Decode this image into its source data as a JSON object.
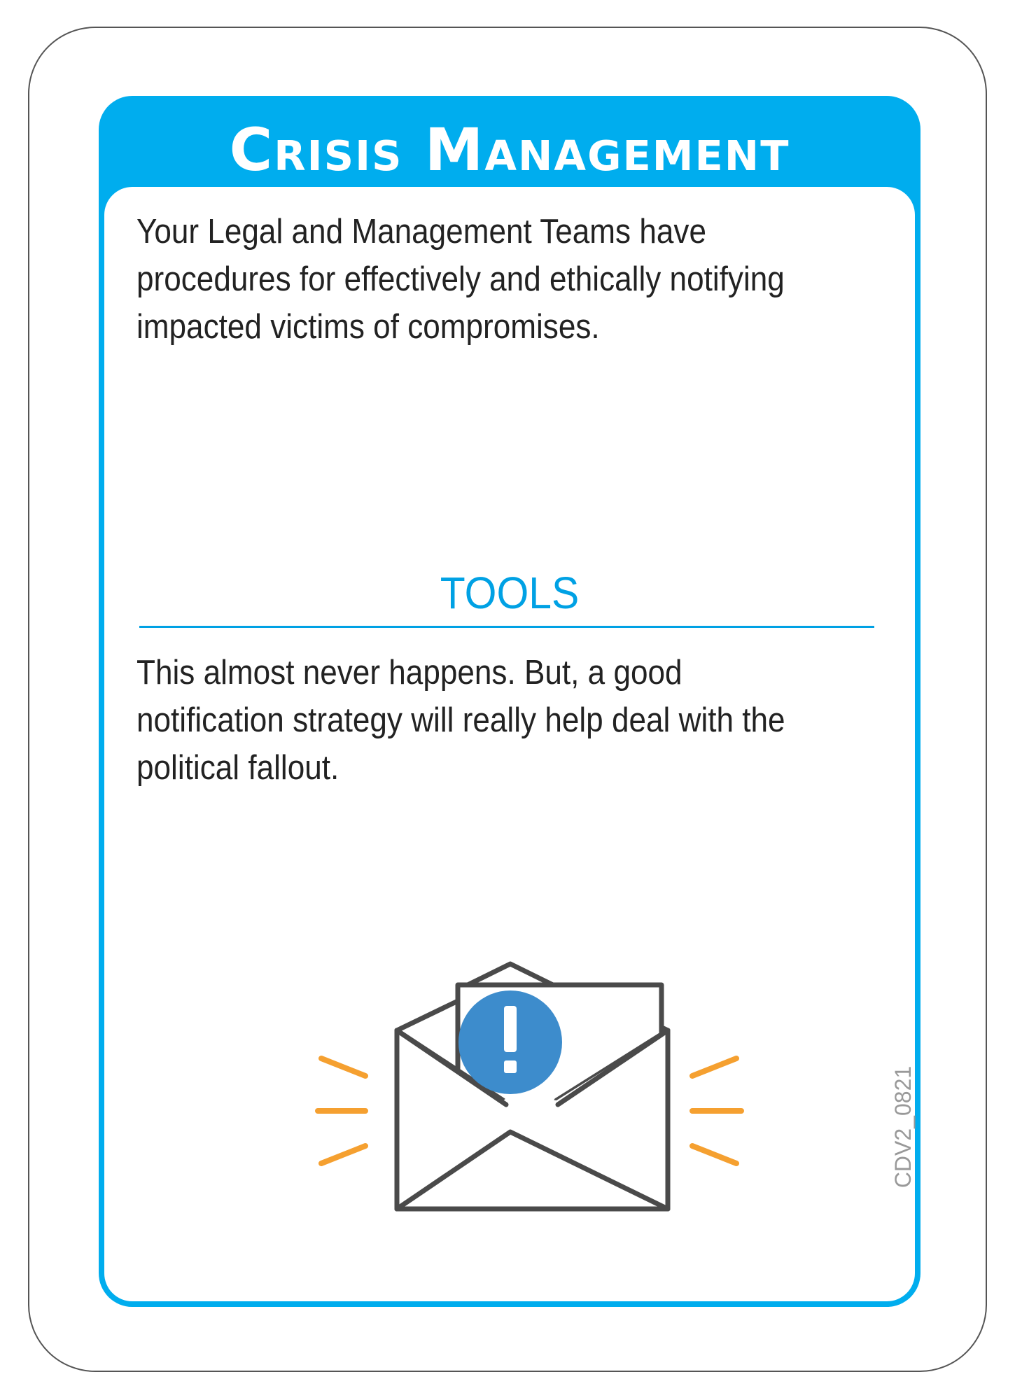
{
  "card": {
    "title": "Crisis Management",
    "description": "Your Legal and Management Teams have procedures for effectively and ethically notifying impacted victims of compromises.",
    "section_heading": "TOOLS",
    "tools_text": "This almost never happens. But, a good notification strategy will really help deal with the political fallout.",
    "code": "CDV2_0821"
  },
  "illustration": {
    "icon": "envelope-alert-icon",
    "colors": {
      "outline": "#4a4a4a",
      "alert_circle": "#3d8ccc",
      "rays": "#f5a030"
    }
  },
  "colors": {
    "accent": "#00adee",
    "heading": "#00a1e4",
    "text": "#222222",
    "card_border": "#555555"
  }
}
